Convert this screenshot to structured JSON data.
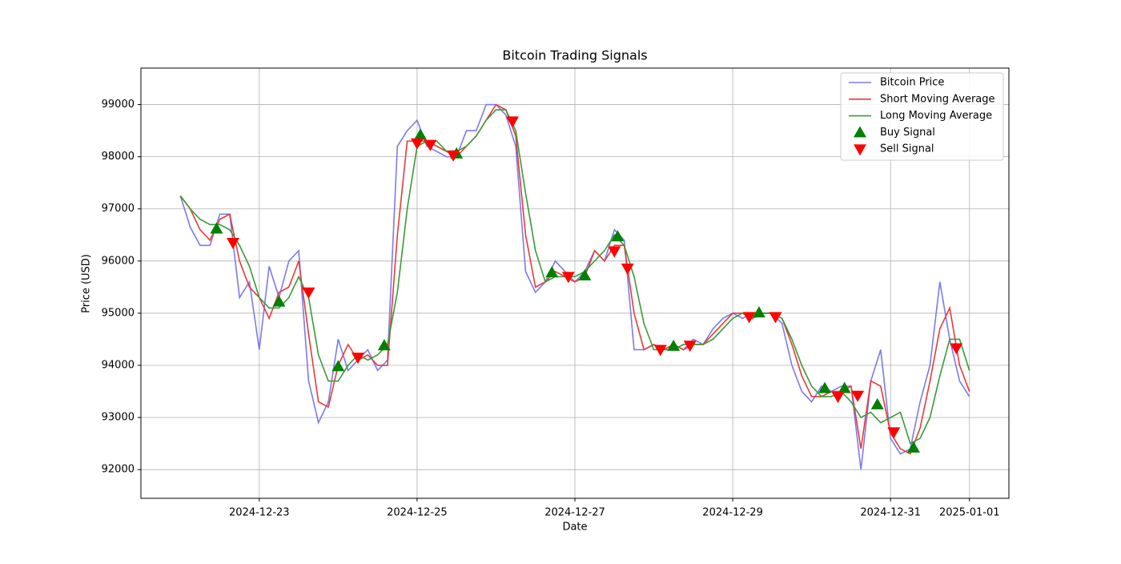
{
  "chart_data": {
    "type": "line",
    "title": "Bitcoin Trading Signals",
    "x_label": "Date",
    "y_label": "Price (USD)",
    "x": [
      "2024-12-22T00:00",
      "2024-12-22T03:00",
      "2024-12-22T06:00",
      "2024-12-22T09:00",
      "2024-12-22T12:00",
      "2024-12-22T15:00",
      "2024-12-22T18:00",
      "2024-12-22T21:00",
      "2024-12-23T00:00",
      "2024-12-23T03:00",
      "2024-12-23T06:00",
      "2024-12-23T09:00",
      "2024-12-23T12:00",
      "2024-12-23T15:00",
      "2024-12-23T18:00",
      "2024-12-23T21:00",
      "2024-12-24T00:00",
      "2024-12-24T03:00",
      "2024-12-24T06:00",
      "2024-12-24T09:00",
      "2024-12-24T12:00",
      "2024-12-24T15:00",
      "2024-12-24T18:00",
      "2024-12-24T21:00",
      "2024-12-25T00:00",
      "2024-12-25T03:00",
      "2024-12-25T06:00",
      "2024-12-25T09:00",
      "2024-12-25T12:00",
      "2024-12-25T15:00",
      "2024-12-25T18:00",
      "2024-12-25T21:00",
      "2024-12-26T00:00",
      "2024-12-26T03:00",
      "2024-12-26T06:00",
      "2024-12-26T09:00",
      "2024-12-26T12:00",
      "2024-12-26T15:00",
      "2024-12-26T18:00",
      "2024-12-26T21:00",
      "2024-12-27T00:00",
      "2024-12-27T03:00",
      "2024-12-27T06:00",
      "2024-12-27T09:00",
      "2024-12-27T12:00",
      "2024-12-27T15:00",
      "2024-12-27T18:00",
      "2024-12-27T21:00",
      "2024-12-28T00:00",
      "2024-12-28T03:00",
      "2024-12-28T06:00",
      "2024-12-28T09:00",
      "2024-12-28T12:00",
      "2024-12-28T15:00",
      "2024-12-28T18:00",
      "2024-12-28T21:00",
      "2024-12-29T00:00",
      "2024-12-29T03:00",
      "2024-12-29T06:00",
      "2024-12-29T09:00",
      "2024-12-29T12:00",
      "2024-12-29T15:00",
      "2024-12-29T18:00",
      "2024-12-29T21:00",
      "2024-12-30T00:00",
      "2024-12-30T03:00",
      "2024-12-30T06:00",
      "2024-12-30T09:00",
      "2024-12-30T12:00",
      "2024-12-30T15:00",
      "2024-12-30T18:00",
      "2024-12-30T21:00",
      "2024-12-31T00:00",
      "2024-12-31T03:00",
      "2024-12-31T06:00",
      "2024-12-31T09:00",
      "2024-12-31T12:00",
      "2024-12-31T15:00",
      "2024-12-31T18:00",
      "2024-12-31T21:00",
      "2025-01-01T00:00"
    ],
    "series": [
      {
        "name": "Bitcoin Price",
        "color": "#7b7bea",
        "values": [
          97250,
          96650,
          96300,
          96300,
          96900,
          96900,
          95300,
          95600,
          94300,
          95900,
          95300,
          96000,
          96200,
          93700,
          92900,
          93300,
          94500,
          93900,
          94100,
          94300,
          93900,
          94100,
          98200,
          98500,
          98700,
          98200,
          98100,
          98000,
          98000,
          98500,
          98500,
          99000,
          99000,
          98800,
          98200,
          95800,
          95400,
          95600,
          96000,
          95800,
          95600,
          95800,
          96200,
          96000,
          96600,
          96400,
          94300,
          94300,
          94400,
          94300,
          94400,
          94300,
          94500,
          94400,
          94700,
          94900,
          95000,
          94900,
          95000,
          95000,
          95000,
          94800,
          94000,
          93500,
          93300,
          93600,
          93500,
          93600,
          93600,
          92000,
          93700,
          94300,
          92600,
          92300,
          92400,
          93300,
          94000,
          95600,
          94500,
          93700,
          93400
        ]
      },
      {
        "name": "Short Moving Average",
        "color": "#e83a3a",
        "values": [
          97250,
          97000,
          96600,
          96400,
          96800,
          96900,
          96000,
          95500,
          95300,
          94900,
          95400,
          95500,
          96000,
          94600,
          93300,
          93200,
          94000,
          94400,
          94100,
          94200,
          94000,
          94000,
          96500,
          98300,
          98300,
          98300,
          98200,
          98100,
          98000,
          98200,
          98400,
          98700,
          99000,
          98900,
          98400,
          96500,
          95500,
          95600,
          95800,
          95700,
          95600,
          95700,
          96200,
          96000,
          96300,
          96300,
          95000,
          94300,
          94400,
          94300,
          94400,
          94300,
          94400,
          94400,
          94600,
          94800,
          95000,
          95000,
          94900,
          95000,
          95000,
          94900,
          94400,
          93800,
          93400,
          93400,
          93500,
          93500,
          93600,
          92400,
          93700,
          93600,
          92700,
          92400,
          92300,
          92800,
          93700,
          94700,
          95100,
          94000,
          93500
        ]
      },
      {
        "name": "Long Moving Average",
        "color": "#3a9a3a",
        "values": [
          97250,
          97000,
          96800,
          96700,
          96700,
          96600,
          96300,
          95900,
          95300,
          95100,
          95100,
          95300,
          95700,
          95300,
          94200,
          93700,
          93700,
          94000,
          94200,
          94100,
          94200,
          94400,
          95400,
          97000,
          98200,
          98300,
          98300,
          98100,
          98100,
          98200,
          98400,
          98700,
          98900,
          98900,
          98500,
          97300,
          96200,
          95600,
          95700,
          95700,
          95700,
          95800,
          96000,
          96200,
          96500,
          96300,
          95700,
          94800,
          94300,
          94300,
          94300,
          94400,
          94400,
          94400,
          94500,
          94700,
          94900,
          95000,
          95000,
          95000,
          95000,
          94900,
          94500,
          94000,
          93600,
          93400,
          93400,
          93500,
          93300,
          93000,
          93100,
          92900,
          93000,
          93100,
          92500,
          92600,
          93000,
          93800,
          94500,
          94500,
          93900
        ]
      },
      {
        "name": "Buy Signal",
        "type": "scatter",
        "marker": "up",
        "color": "#008000",
        "x": [
          "2024-12-22T11:00",
          "2024-12-23T06:00",
          "2024-12-24T00:00",
          "2024-12-24T14:00",
          "2024-12-25T01:00",
          "2024-12-25T12:00",
          "2024-12-26T17:00",
          "2024-12-27T03:00",
          "2024-12-27T13:00",
          "2024-12-28T06:00",
          "2024-12-29T08:00",
          "2024-12-30T04:00",
          "2024-12-30T10:00",
          "2024-12-30T20:00",
          "2024-12-31T07:00"
        ],
        "values": [
          96620,
          95220,
          93980,
          94380,
          98420,
          98060,
          95780,
          95720,
          96470,
          94370,
          95010,
          93560,
          93560,
          93250,
          92420
        ]
      },
      {
        "name": "Sell Signal",
        "type": "scatter",
        "marker": "down",
        "color": "#ff0000",
        "x": [
          "2024-12-22T16:00",
          "2024-12-23T15:00",
          "2024-12-24T06:00",
          "2024-12-25T00:00",
          "2024-12-25T04:00",
          "2024-12-25T11:00",
          "2024-12-26T05:00",
          "2024-12-26T22:00",
          "2024-12-27T12:00",
          "2024-12-27T16:00",
          "2024-12-28T02:00",
          "2024-12-28T11:00",
          "2024-12-29T05:00",
          "2024-12-29T13:00",
          "2024-12-30T08:00",
          "2024-12-30T14:00",
          "2024-12-31T01:00",
          "2024-12-31T20:00"
        ],
        "values": [
          96350,
          95400,
          94150,
          98260,
          98230,
          98030,
          98680,
          95700,
          96190,
          95860,
          94300,
          94380,
          94930,
          94930,
          93400,
          93420,
          92720,
          94330
        ]
      }
    ],
    "xlim": [
      "2024-12-21T12:00",
      "2025-01-01T12:00"
    ],
    "xticks": [
      "2024-12-23",
      "2024-12-25",
      "2024-12-27",
      "2024-12-29",
      "2024-12-31",
      "2025-01-01"
    ],
    "ylim": [
      91450,
      99700
    ],
    "yticks": [
      92000,
      93000,
      94000,
      95000,
      96000,
      97000,
      98000,
      99000
    ],
    "grid": true,
    "legend": "upper right"
  }
}
